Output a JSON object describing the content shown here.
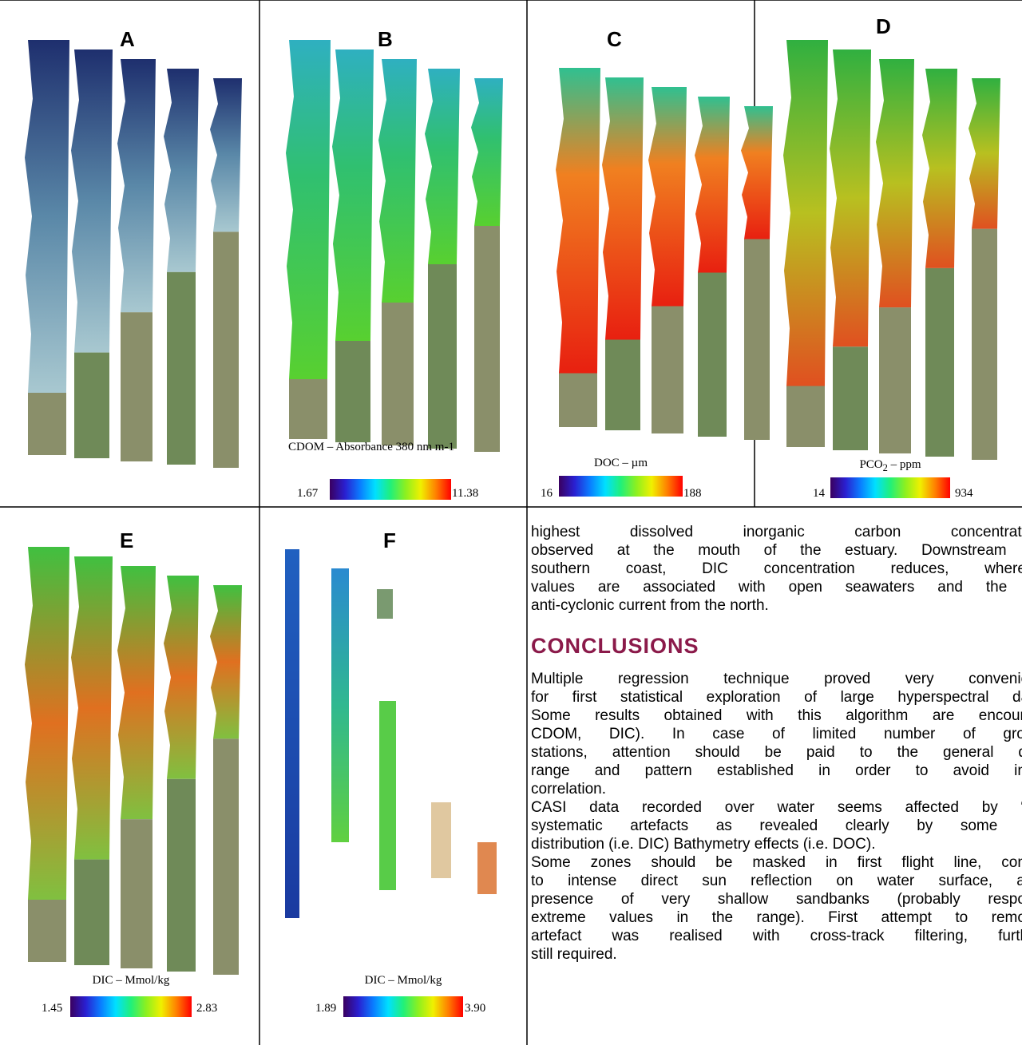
{
  "panels": [
    {
      "label": "A"
    },
    {
      "label": "B",
      "legend": {
        "title": "CDOM – Absorbance 380 nm m-1",
        "min": "1.67",
        "max": "11.38"
      }
    },
    {
      "label": "C",
      "legend": {
        "title": "DOC – µm",
        "min": "16",
        "max": "188"
      }
    },
    {
      "label": "D",
      "legend": {
        "title": "PCO",
        "title_sub": "2",
        "title_rest": " – ppm",
        "min": "14",
        "max": "934"
      }
    },
    {
      "label": "E",
      "legend": {
        "title": "DIC – Mmol/kg",
        "min": "1.45",
        "max": "2.83"
      }
    },
    {
      "label": "F",
      "legend": {
        "title": "DIC – Mmol/kg",
        "min": "1.89",
        "max": "3.90"
      }
    }
  ],
  "text": {
    "paragraph": [
      "highest dissolved inorganic carbon concentration",
      "observed at the mouth of the estuary. Downstream al",
      "southern coast, DIC concentration reduces, whereas",
      "values are associated with open seawaters and the in",
      "anti-cyclonic current from the north."
    ],
    "heading": "CONCLUSIONS",
    "conclusions": [
      "Multiple regression technique proved very convenient",
      "for first statistical exploration of large hyperspectral data",
      "Some results obtained with this algorithm are encourag",
      "CDOM, DIC). In case of limited number of groun",
      "stations, attention should be paid to the general dist",
      "range and pattern established in order to avoid inco",
      "correlation.",
      "CASI data recorded over water seems affected by “su",
      "systematic artefacts as revealed clearly by some pa",
      "distribution (i.e. DIC) Bathymetry effects (i.e. DOC).",
      "Some zones should be masked in first flight line, conse",
      "to intense direct sun reflection on water surface, and",
      "presence of very shallow sandbanks (probably respons",
      "extreme values in the range). First attempt to remove",
      "artefact was realised with cross-track filtering, further",
      "still required."
    ]
  }
}
